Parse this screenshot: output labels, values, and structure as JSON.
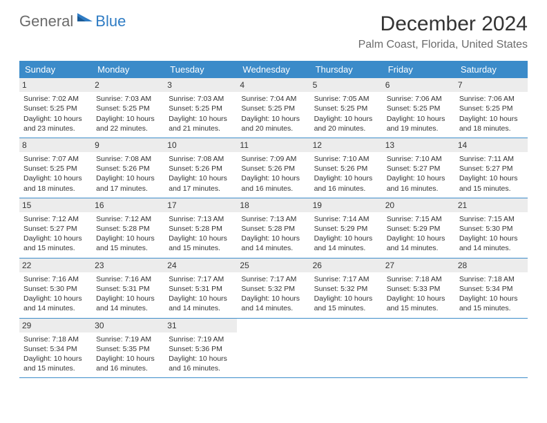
{
  "logo": {
    "text1": "General",
    "text2": "Blue"
  },
  "title": "December 2024",
  "location": "Palm Coast, Florida, United States",
  "colors": {
    "header_bg": "#3b8bc9",
    "header_text": "#ffffff",
    "daynum_bg": "#ececec",
    "border": "#3b8bc9",
    "logo_gray": "#6b6b6b",
    "logo_blue": "#2f7cc4",
    "body_text": "#333333"
  },
  "day_names": [
    "Sunday",
    "Monday",
    "Tuesday",
    "Wednesday",
    "Thursday",
    "Friday",
    "Saturday"
  ],
  "weeks": [
    [
      {
        "n": "1",
        "sr": "7:02 AM",
        "ss": "5:25 PM",
        "dl": "10 hours and 23 minutes."
      },
      {
        "n": "2",
        "sr": "7:03 AM",
        "ss": "5:25 PM",
        "dl": "10 hours and 22 minutes."
      },
      {
        "n": "3",
        "sr": "7:03 AM",
        "ss": "5:25 PM",
        "dl": "10 hours and 21 minutes."
      },
      {
        "n": "4",
        "sr": "7:04 AM",
        "ss": "5:25 PM",
        "dl": "10 hours and 20 minutes."
      },
      {
        "n": "5",
        "sr": "7:05 AM",
        "ss": "5:25 PM",
        "dl": "10 hours and 20 minutes."
      },
      {
        "n": "6",
        "sr": "7:06 AM",
        "ss": "5:25 PM",
        "dl": "10 hours and 19 minutes."
      },
      {
        "n": "7",
        "sr": "7:06 AM",
        "ss": "5:25 PM",
        "dl": "10 hours and 18 minutes."
      }
    ],
    [
      {
        "n": "8",
        "sr": "7:07 AM",
        "ss": "5:25 PM",
        "dl": "10 hours and 18 minutes."
      },
      {
        "n": "9",
        "sr": "7:08 AM",
        "ss": "5:26 PM",
        "dl": "10 hours and 17 minutes."
      },
      {
        "n": "10",
        "sr": "7:08 AM",
        "ss": "5:26 PM",
        "dl": "10 hours and 17 minutes."
      },
      {
        "n": "11",
        "sr": "7:09 AM",
        "ss": "5:26 PM",
        "dl": "10 hours and 16 minutes."
      },
      {
        "n": "12",
        "sr": "7:10 AM",
        "ss": "5:26 PM",
        "dl": "10 hours and 16 minutes."
      },
      {
        "n": "13",
        "sr": "7:10 AM",
        "ss": "5:27 PM",
        "dl": "10 hours and 16 minutes."
      },
      {
        "n": "14",
        "sr": "7:11 AM",
        "ss": "5:27 PM",
        "dl": "10 hours and 15 minutes."
      }
    ],
    [
      {
        "n": "15",
        "sr": "7:12 AM",
        "ss": "5:27 PM",
        "dl": "10 hours and 15 minutes."
      },
      {
        "n": "16",
        "sr": "7:12 AM",
        "ss": "5:28 PM",
        "dl": "10 hours and 15 minutes."
      },
      {
        "n": "17",
        "sr": "7:13 AM",
        "ss": "5:28 PM",
        "dl": "10 hours and 15 minutes."
      },
      {
        "n": "18",
        "sr": "7:13 AM",
        "ss": "5:28 PM",
        "dl": "10 hours and 14 minutes."
      },
      {
        "n": "19",
        "sr": "7:14 AM",
        "ss": "5:29 PM",
        "dl": "10 hours and 14 minutes."
      },
      {
        "n": "20",
        "sr": "7:15 AM",
        "ss": "5:29 PM",
        "dl": "10 hours and 14 minutes."
      },
      {
        "n": "21",
        "sr": "7:15 AM",
        "ss": "5:30 PM",
        "dl": "10 hours and 14 minutes."
      }
    ],
    [
      {
        "n": "22",
        "sr": "7:16 AM",
        "ss": "5:30 PM",
        "dl": "10 hours and 14 minutes."
      },
      {
        "n": "23",
        "sr": "7:16 AM",
        "ss": "5:31 PM",
        "dl": "10 hours and 14 minutes."
      },
      {
        "n": "24",
        "sr": "7:17 AM",
        "ss": "5:31 PM",
        "dl": "10 hours and 14 minutes."
      },
      {
        "n": "25",
        "sr": "7:17 AM",
        "ss": "5:32 PM",
        "dl": "10 hours and 14 minutes."
      },
      {
        "n": "26",
        "sr": "7:17 AM",
        "ss": "5:32 PM",
        "dl": "10 hours and 15 minutes."
      },
      {
        "n": "27",
        "sr": "7:18 AM",
        "ss": "5:33 PM",
        "dl": "10 hours and 15 minutes."
      },
      {
        "n": "28",
        "sr": "7:18 AM",
        "ss": "5:34 PM",
        "dl": "10 hours and 15 minutes."
      }
    ],
    [
      {
        "n": "29",
        "sr": "7:18 AM",
        "ss": "5:34 PM",
        "dl": "10 hours and 15 minutes."
      },
      {
        "n": "30",
        "sr": "7:19 AM",
        "ss": "5:35 PM",
        "dl": "10 hours and 16 minutes."
      },
      {
        "n": "31",
        "sr": "7:19 AM",
        "ss": "5:36 PM",
        "dl": "10 hours and 16 minutes."
      },
      null,
      null,
      null,
      null
    ]
  ],
  "labels": {
    "sunrise": "Sunrise: ",
    "sunset": "Sunset: ",
    "daylight": "Daylight: "
  }
}
